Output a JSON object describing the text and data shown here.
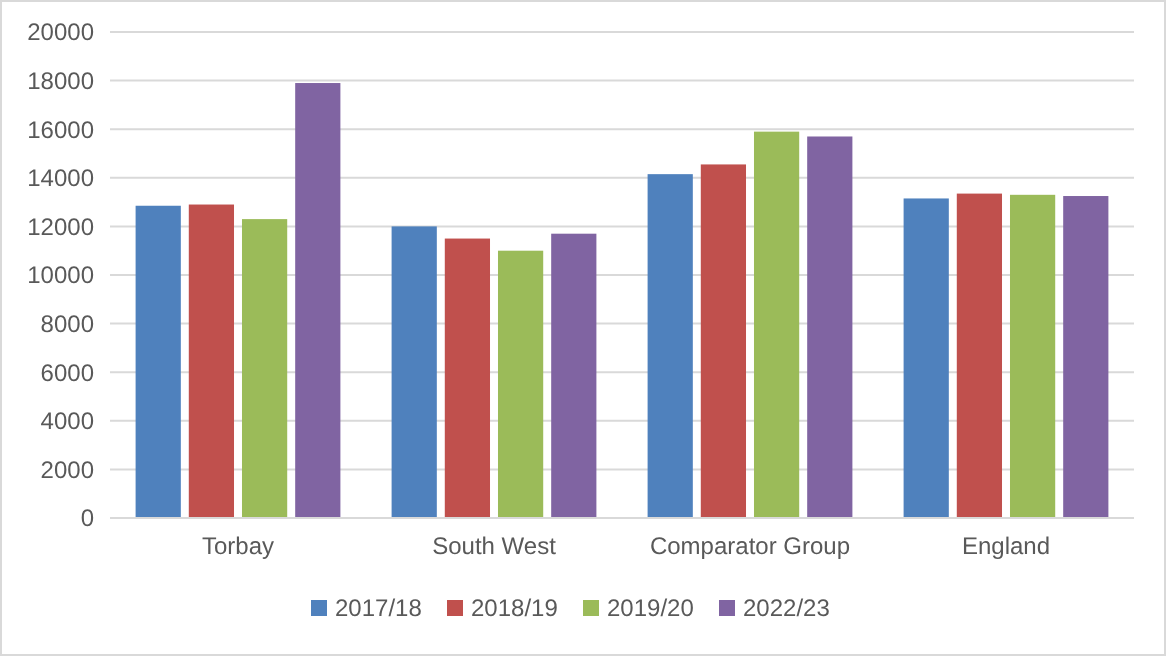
{
  "chart_data": {
    "type": "bar",
    "categories": [
      "Torbay",
      "South West",
      "Comparator Group",
      "England"
    ],
    "series": [
      {
        "name": "2017/18",
        "color": "#4f81bd",
        "values": [
          12850,
          12000,
          14150,
          13150
        ]
      },
      {
        "name": "2018/19",
        "color": "#c0504d",
        "values": [
          12900,
          11500,
          14550,
          13350
        ]
      },
      {
        "name": "2019/20",
        "color": "#9bbb59",
        "values": [
          12300,
          11000,
          15900,
          13300
        ]
      },
      {
        "name": "2022/23",
        "color": "#8064a2",
        "values": [
          17900,
          11700,
          15700,
          13250
        ]
      }
    ],
    "ylim": [
      0,
      20000
    ],
    "yticks": [
      0,
      2000,
      4000,
      6000,
      8000,
      10000,
      12000,
      14000,
      16000,
      18000,
      20000
    ],
    "grid": "y",
    "legend": "bottom"
  }
}
